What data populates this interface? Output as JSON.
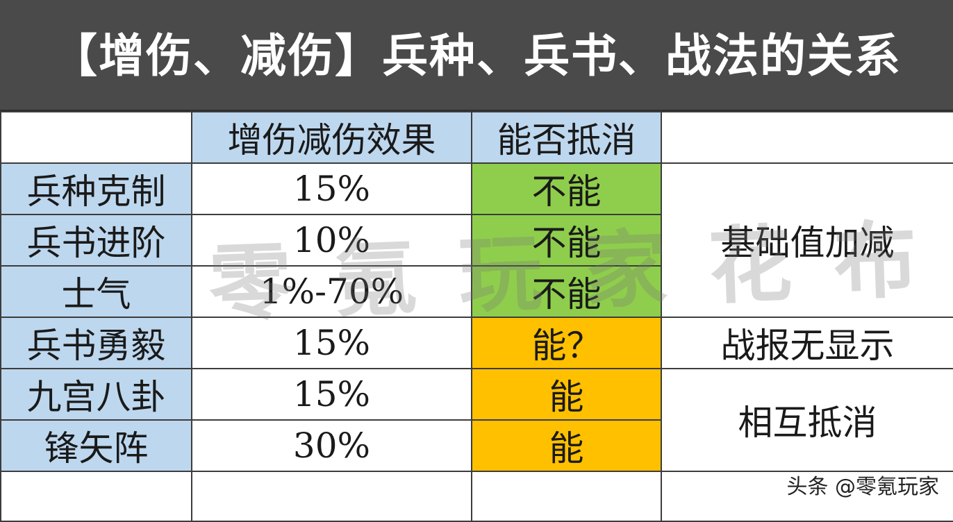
{
  "title": "【增伤、减伤】兵种、兵书、战法的关系",
  "columns": {
    "effect": "增伤减伤效果",
    "offset": "能否抵消"
  },
  "rows": [
    {
      "name": "兵种克制",
      "effect": "15%",
      "offset": "不能"
    },
    {
      "name": "兵书进阶",
      "effect": "10%",
      "offset": "不能"
    },
    {
      "name": "士气",
      "effect": "1%-70%",
      "offset": "不能"
    },
    {
      "name": "兵书勇毅",
      "effect": "15%",
      "offset": "能？"
    },
    {
      "name": "九宫八卦",
      "effect": "15%",
      "offset": "能"
    },
    {
      "name": "锋矢阵",
      "effect": "30%",
      "offset": "能"
    }
  ],
  "notes": {
    "base": "基础值加减",
    "report": "战报无显示",
    "mutual": "相互抵消"
  },
  "watermark": "零氪玩家花布",
  "credit": "头条 @零氪玩家",
  "colors": {
    "header_bg": "#4a4a4a",
    "label_bg": "#bdd7ee",
    "cannot": "#8fce4c",
    "can": "#ffc000"
  }
}
